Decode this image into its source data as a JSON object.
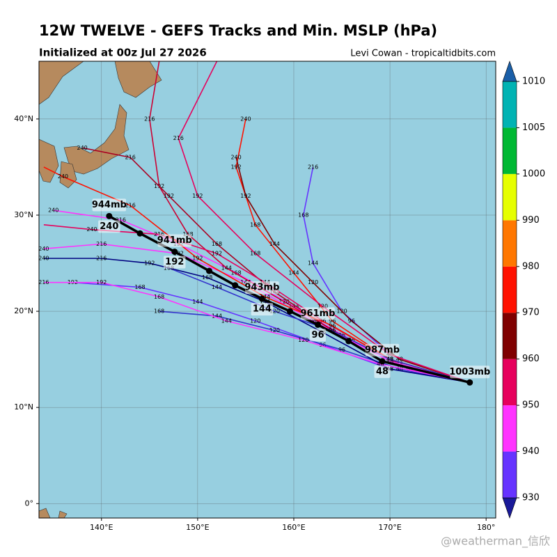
{
  "title": "12W TWELVE - GEFS Tracks and Min. MSLP (hPa)",
  "subtitle": "Initialized at 00z Jul 27 2026",
  "credit": "Levi Cowan - tropicaltidbits.com",
  "watermark": "@weatherman_信欣",
  "map": {
    "lonlim": [
      133.5,
      181
    ],
    "latlim": [
      -1.5,
      46
    ],
    "ocean": "#97cfe0",
    "land": "#b68a5e",
    "lonticks": [
      {
        "value": 140,
        "label": "140°E"
      },
      {
        "value": 150,
        "label": "150°E"
      },
      {
        "value": 160,
        "label": "160°E"
      },
      {
        "value": 170,
        "label": "170°E"
      },
      {
        "value": 180,
        "label": "180°"
      }
    ],
    "latticks": [
      {
        "value": 0,
        "label": "0°"
      },
      {
        "value": 10,
        "label": "10°N"
      },
      {
        "value": 20,
        "label": "20°N"
      },
      {
        "value": 30,
        "label": "30°N"
      },
      {
        "value": 40,
        "label": "40°N"
      }
    ]
  },
  "members": [
    {
      "color": "#ff33ff",
      "points": [
        [
          178.3,
          12.6
        ],
        [
          172,
          14
        ],
        [
          166,
          17
        ],
        [
          160,
          20.5
        ],
        [
          154,
          24
        ],
        [
          148,
          27
        ],
        [
          142,
          29.5
        ],
        [
          135,
          30.5
        ]
      ],
      "labels": [
        null,
        "48",
        "96",
        "144",
        "168",
        "192",
        "216",
        "240"
      ]
    },
    {
      "color": "#cc0033",
      "points": [
        [
          178.3,
          12.6
        ],
        [
          171,
          14.5
        ],
        [
          165,
          17.5
        ],
        [
          159,
          21
        ],
        [
          153,
          24.5
        ],
        [
          149,
          28
        ],
        [
          146,
          33
        ],
        [
          145,
          40
        ],
        [
          146,
          46
        ]
      ],
      "labels": [
        null,
        "48",
        "96",
        "120",
        "144",
        "168",
        "192",
        "216",
        null
      ]
    },
    {
      "color": "#aa0022",
      "points": [
        [
          178.3,
          12.6
        ],
        [
          171,
          14.5
        ],
        [
          164,
          18
        ],
        [
          158,
          22
        ],
        [
          152,
          27
        ],
        [
          147,
          32
        ],
        [
          143,
          36
        ],
        [
          138,
          37
        ]
      ],
      "labels": [
        null,
        "48",
        "96",
        "144",
        "168",
        "192",
        "216",
        "240"
      ]
    },
    {
      "color": "#6633ff",
      "points": [
        [
          178.3,
          12.6
        ],
        [
          170,
          14
        ],
        [
          163,
          16.5
        ],
        [
          156,
          19
        ],
        [
          150,
          21
        ],
        [
          144,
          22.5
        ],
        [
          137,
          23
        ]
      ],
      "labels": [
        null,
        "48",
        "96",
        "120",
        "144",
        "168",
        "192"
      ]
    },
    {
      "color": "#ff1100",
      "points": [
        [
          178.3,
          12.6
        ],
        [
          170,
          15
        ],
        [
          164,
          19
        ],
        [
          160,
          24
        ],
        [
          156,
          29
        ],
        [
          154,
          35
        ],
        [
          155,
          40
        ]
      ],
      "labels": [
        null,
        "48",
        "96",
        "144",
        "168",
        "192",
        "240"
      ]
    },
    {
      "color": "#3333cc",
      "points": [
        [
          178.3,
          12.6
        ],
        [
          171,
          14
        ],
        [
          165,
          16
        ],
        [
          158,
          18
        ],
        [
          152,
          19.5
        ],
        [
          146,
          20
        ]
      ],
      "labels": [
        null,
        "48",
        "96",
        "120",
        "144",
        "168"
      ]
    },
    {
      "color": "#e6005c",
      "points": [
        [
          178.3,
          12.6
        ],
        [
          170,
          15
        ],
        [
          163,
          19
        ],
        [
          157,
          23
        ],
        [
          152,
          26
        ],
        [
          146,
          28
        ],
        [
          139,
          28.5
        ],
        [
          134,
          29
        ]
      ],
      "labels": [
        null,
        "48",
        "96",
        "144",
        "192",
        "216",
        "240",
        null
      ]
    },
    {
      "color": "#6633ff",
      "points": [
        [
          178.3,
          12.6
        ],
        [
          170,
          15.5
        ],
        [
          165,
          20
        ],
        [
          162,
          25
        ],
        [
          161,
          30
        ],
        [
          162,
          35
        ]
      ],
      "labels": [
        null,
        "48",
        "120",
        "144",
        "168",
        "216"
      ]
    },
    {
      "color": "#ff33ff",
      "points": [
        [
          178.3,
          12.6
        ],
        [
          170,
          14.8
        ],
        [
          162,
          19
        ],
        [
          155,
          23
        ],
        [
          148,
          26
        ],
        [
          140,
          27
        ],
        [
          134,
          26.5
        ]
      ],
      "labels": [
        null,
        "48",
        "96",
        "144",
        "192",
        "216",
        "240"
      ]
    },
    {
      "color": "#000080",
      "points": [
        [
          178.3,
          12.6
        ],
        [
          170,
          14
        ],
        [
          163,
          17.8
        ],
        [
          157,
          21
        ],
        [
          151,
          23.5
        ],
        [
          145,
          25
        ],
        [
          140,
          25.5
        ],
        [
          134,
          25.5
        ]
      ],
      "labels": [
        null,
        "48",
        "96",
        "144",
        "168",
        "192",
        "216",
        "240"
      ]
    },
    {
      "color": "#7f0000",
      "points": [
        [
          178.3,
          12.6
        ],
        [
          171,
          15
        ],
        [
          166,
          19
        ],
        [
          162,
          23
        ],
        [
          158,
          27
        ],
        [
          155,
          32
        ],
        [
          154,
          36
        ]
      ],
      "labels": [
        null,
        "48",
        "96",
        "120",
        "144",
        "192",
        "240"
      ]
    },
    {
      "color": "#ff1100",
      "points": [
        [
          178.3,
          12.6
        ],
        [
          170,
          15
        ],
        [
          164,
          18.5
        ],
        [
          157,
          21.5
        ],
        [
          150,
          25.5
        ],
        [
          143,
          31
        ],
        [
          136,
          34
        ],
        [
          134,
          35
        ]
      ],
      "labels": [
        null,
        "48",
        "96",
        "144",
        "192",
        "216",
        "240",
        null
      ]
    },
    {
      "color": "#ff33ff",
      "points": [
        [
          178.3,
          12.6
        ],
        [
          169,
          14.5
        ],
        [
          161,
          17
        ],
        [
          153,
          19
        ],
        [
          146,
          21.5
        ],
        [
          140,
          23
        ],
        [
          134,
          23
        ]
      ],
      "labels": [
        null,
        "48",
        "120",
        "144",
        "168",
        "192",
        "216"
      ]
    },
    {
      "color": "#e6005c",
      "points": [
        [
          178.3,
          12.6
        ],
        [
          170,
          15.5
        ],
        [
          163,
          20.5
        ],
        [
          156,
          26
        ],
        [
          150,
          32
        ],
        [
          148,
          38
        ],
        [
          152,
          46
        ]
      ],
      "labels": [
        null,
        "48",
        "120",
        "168",
        "192",
        "216",
        null
      ]
    },
    {
      "color": "#3333cc",
      "points": [
        [
          178.3,
          12.6
        ],
        [
          170,
          15
        ],
        [
          164,
          18
        ],
        [
          158,
          20
        ],
        [
          152,
          22.5
        ],
        [
          147,
          24.5
        ]
      ],
      "labels": [
        null,
        "48",
        "96",
        "120",
        "144",
        "168"
      ]
    }
  ],
  "mean_track": {
    "color": "#000000",
    "points": [
      {
        "lon": 178.3,
        "lat": 12.6,
        "hour": null,
        "pressure": "1003mb"
      },
      {
        "lon": 169.2,
        "lat": 14.8,
        "hour": "48",
        "pressure": "987mb"
      },
      {
        "lon": 165.7,
        "lat": 16.9,
        "hour": null,
        "pressure": null
      },
      {
        "lon": 162.5,
        "lat": 18.6,
        "hour": "96",
        "pressure": "961mb"
      },
      {
        "lon": 159.6,
        "lat": 20.0,
        "hour": null,
        "pressure": null
      },
      {
        "lon": 156.7,
        "lat": 21.3,
        "hour": "144",
        "pressure": "943mb"
      },
      {
        "lon": 153.9,
        "lat": 22.7,
        "hour": null,
        "pressure": null
      },
      {
        "lon": 151.2,
        "lat": 24.2,
        "hour": null,
        "pressure": null
      },
      {
        "lon": 147.6,
        "lat": 26.2,
        "hour": "192",
        "pressure": "941mb"
      },
      {
        "lon": 144.0,
        "lat": 28.1,
        "hour": null,
        "pressure": null
      },
      {
        "lon": 140.8,
        "lat": 29.9,
        "hour": "240",
        "pressure": "944mb"
      }
    ]
  },
  "colorbar": {
    "bounds": [
      930,
      940,
      950,
      960,
      970,
      980,
      990,
      1000,
      1005,
      1010
    ],
    "colors": [
      "#6633ff",
      "#ff33ff",
      "#e6005c",
      "#7f0000",
      "#ff1100",
      "#ff7700",
      "#e6ff00",
      "#00b833",
      "#00b3b3"
    ],
    "under": "#1a1a99",
    "over": "#1a5fa8"
  }
}
